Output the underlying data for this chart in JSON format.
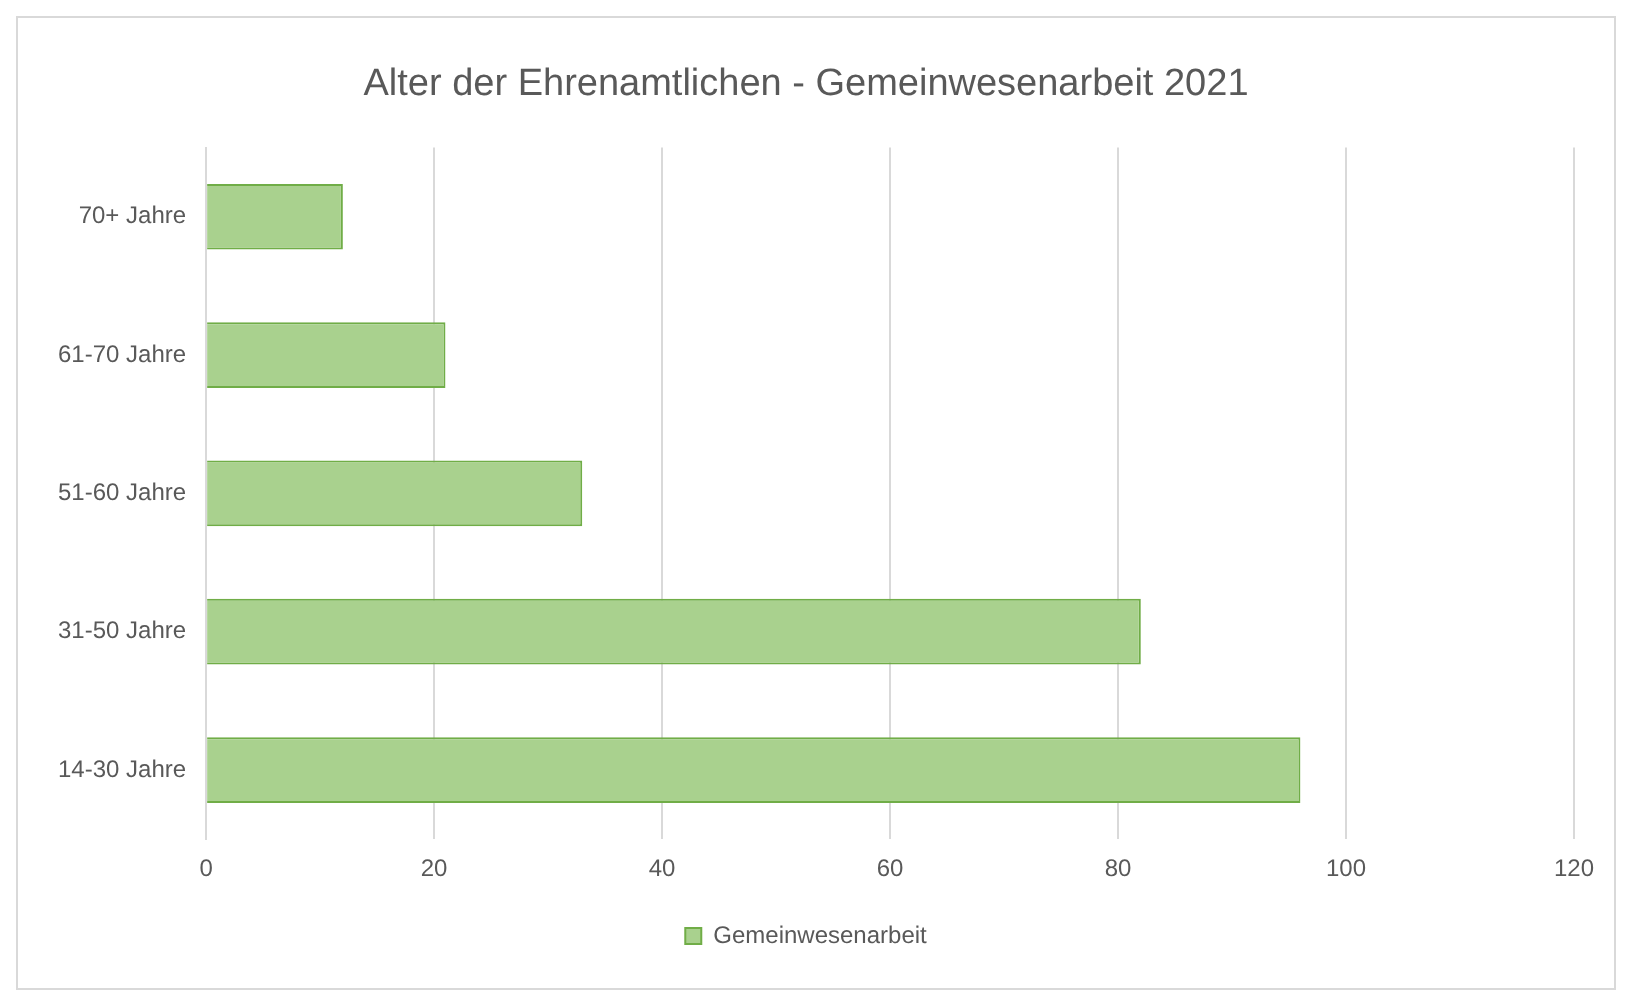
{
  "chart_data": {
    "type": "bar",
    "orientation": "horizontal",
    "title": "Alter der Ehrenamtlichen - Gemeinwesenarbeit 2021",
    "categories": [
      "70+ Jahre",
      "61-70 Jahre",
      "51-60 Jahre",
      "31-50 Jahre",
      "14-30 Jahre"
    ],
    "series": [
      {
        "name": "Gemeinwesenarbeit",
        "color": "#a9d18e",
        "values": [
          12,
          21,
          33,
          82,
          96
        ]
      }
    ],
    "xlim": [
      0,
      120
    ],
    "xticks": [
      0,
      20,
      40,
      60,
      80,
      100,
      120
    ],
    "grid": "x",
    "legend": "bottom"
  }
}
